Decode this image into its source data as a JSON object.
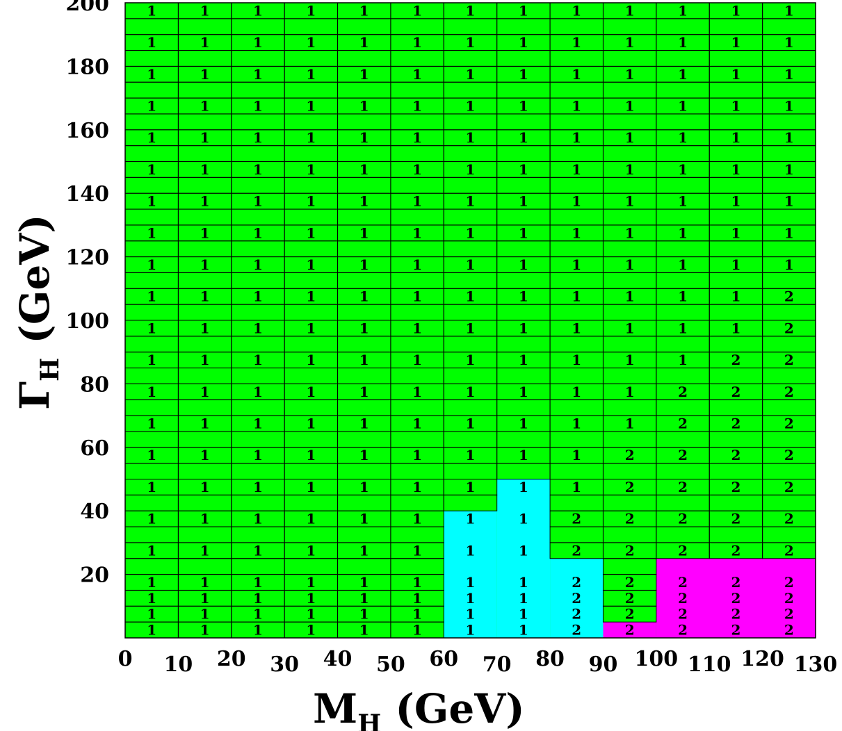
{
  "chart_data": {
    "type": "heatmap",
    "title": "",
    "xlabel": "M",
    "xlabel_sub": "H",
    "xlabel_units": " (GeV)",
    "ylabel": "Γ",
    "ylabel_sub": "H",
    "ylabel_units": " (GeV)",
    "xlim": [
      0,
      130
    ],
    "ylim": [
      0,
      200
    ],
    "x_ticks": [
      0,
      10,
      20,
      30,
      40,
      50,
      60,
      70,
      80,
      90,
      100,
      110,
      120,
      130
    ],
    "y_ticks": [
      20,
      40,
      60,
      80,
      100,
      120,
      140,
      160,
      180,
      200
    ],
    "x_bins": [
      [
        0,
        10
      ],
      [
        10,
        20
      ],
      [
        20,
        30
      ],
      [
        30,
        40
      ],
      [
        40,
        50
      ],
      [
        50,
        60
      ],
      [
        60,
        70
      ],
      [
        70,
        80
      ],
      [
        80,
        90
      ],
      [
        90,
        100
      ],
      [
        100,
        110
      ],
      [
        110,
        120
      ],
      [
        120,
        130
      ]
    ],
    "y_bins": [
      [
        0,
        5
      ],
      [
        5,
        10
      ],
      [
        10,
        15
      ],
      [
        15,
        20
      ],
      [
        20,
        25
      ],
      [
        25,
        30
      ],
      [
        30,
        35
      ],
      [
        35,
        40
      ],
      [
        40,
        45
      ],
      [
        45,
        50
      ],
      [
        50,
        55
      ],
      [
        55,
        60
      ],
      [
        60,
        65
      ],
      [
        65,
        70
      ],
      [
        70,
        75
      ],
      [
        75,
        80
      ],
      [
        80,
        85
      ],
      [
        85,
        90
      ],
      [
        90,
        95
      ],
      [
        95,
        100
      ],
      [
        100,
        105
      ],
      [
        105,
        110
      ],
      [
        110,
        115
      ],
      [
        115,
        120
      ],
      [
        120,
        125
      ],
      [
        125,
        130
      ],
      [
        130,
        135
      ],
      [
        135,
        140
      ],
      [
        140,
        145
      ],
      [
        145,
        150
      ],
      [
        150,
        155
      ],
      [
        155,
        160
      ],
      [
        160,
        165
      ],
      [
        165,
        170
      ],
      [
        170,
        175
      ],
      [
        175,
        180
      ],
      [
        180,
        185
      ],
      [
        185,
        190
      ],
      [
        190,
        195
      ],
      [
        195,
        200
      ]
    ],
    "color_legend": {
      "green": "#00ff00",
      "cyan": "#00ffff",
      "magenta": "#ff00ff"
    },
    "regions": [
      {
        "color": "cyan",
        "x": [
          60,
          70
        ],
        "y": [
          0,
          40
        ]
      },
      {
        "color": "cyan",
        "x": [
          70,
          80
        ],
        "y": [
          0,
          50
        ]
      },
      {
        "color": "cyan",
        "x": [
          80,
          90
        ],
        "y": [
          0,
          25
        ]
      },
      {
        "color": "magenta",
        "x": [
          90,
          100
        ],
        "y": [
          0,
          5
        ]
      },
      {
        "color": "magenta",
        "x": [
          100,
          130
        ],
        "y": [
          0,
          25
        ]
      }
    ],
    "labels": [
      {
        "y": 2.5,
        "values": [
          "1",
          "1",
          "1",
          "1",
          "1",
          "1",
          "1",
          "1",
          "2",
          "2",
          "2",
          "2",
          "2"
        ]
      },
      {
        "y": 7.5,
        "values": [
          "1",
          "1",
          "1",
          "1",
          "1",
          "1",
          "1",
          "1",
          "2",
          "2",
          "2",
          "2",
          "2"
        ]
      },
      {
        "y": 12.5,
        "values": [
          "1",
          "1",
          "1",
          "1",
          "1",
          "1",
          "1",
          "1",
          "2",
          "2",
          "2",
          "2",
          "2"
        ]
      },
      {
        "y": 17.5,
        "values": [
          "1",
          "1",
          "1",
          "1",
          "1",
          "1",
          "1",
          "1",
          "2",
          "2",
          "2",
          "2",
          "2"
        ]
      },
      {
        "y": 27.5,
        "values": [
          "1",
          "1",
          "1",
          "1",
          "1",
          "1",
          "1",
          "1",
          "2",
          "2",
          "2",
          "2",
          "2"
        ]
      },
      {
        "y": 37.5,
        "values": [
          "1",
          "1",
          "1",
          "1",
          "1",
          "1",
          "1",
          "1",
          "2",
          "2",
          "2",
          "2",
          "2"
        ]
      },
      {
        "y": 47.5,
        "values": [
          "1",
          "1",
          "1",
          "1",
          "1",
          "1",
          "1",
          "1",
          "1",
          "2",
          "2",
          "2",
          "2"
        ]
      },
      {
        "y": 57.5,
        "values": [
          "1",
          "1",
          "1",
          "1",
          "1",
          "1",
          "1",
          "1",
          "1",
          "2",
          "2",
          "2",
          "2"
        ]
      },
      {
        "y": 67.5,
        "values": [
          "1",
          "1",
          "1",
          "1",
          "1",
          "1",
          "1",
          "1",
          "1",
          "1",
          "2",
          "2",
          "2"
        ]
      },
      {
        "y": 77.5,
        "values": [
          "1",
          "1",
          "1",
          "1",
          "1",
          "1",
          "1",
          "1",
          "1",
          "1",
          "2",
          "2",
          "2"
        ]
      },
      {
        "y": 87.5,
        "values": [
          "1",
          "1",
          "1",
          "1",
          "1",
          "1",
          "1",
          "1",
          "1",
          "1",
          "1",
          "2",
          "2"
        ]
      },
      {
        "y": 97.5,
        "values": [
          "1",
          "1",
          "1",
          "1",
          "1",
          "1",
          "1",
          "1",
          "1",
          "1",
          "1",
          "1",
          "2"
        ]
      },
      {
        "y": 107.5,
        "values": [
          "1",
          "1",
          "1",
          "1",
          "1",
          "1",
          "1",
          "1",
          "1",
          "1",
          "1",
          "1",
          "2"
        ]
      },
      {
        "y": 117.5,
        "values": [
          "1",
          "1",
          "1",
          "1",
          "1",
          "1",
          "1",
          "1",
          "1",
          "1",
          "1",
          "1",
          "1"
        ]
      },
      {
        "y": 127.5,
        "values": [
          "1",
          "1",
          "1",
          "1",
          "1",
          "1",
          "1",
          "1",
          "1",
          "1",
          "1",
          "1",
          "1"
        ]
      },
      {
        "y": 137.5,
        "values": [
          "1",
          "1",
          "1",
          "1",
          "1",
          "1",
          "1",
          "1",
          "1",
          "1",
          "1",
          "1",
          "1"
        ]
      },
      {
        "y": 147.5,
        "values": [
          "1",
          "1",
          "1",
          "1",
          "1",
          "1",
          "1",
          "1",
          "1",
          "1",
          "1",
          "1",
          "1"
        ]
      },
      {
        "y": 157.5,
        "values": [
          "1",
          "1",
          "1",
          "1",
          "1",
          "1",
          "1",
          "1",
          "1",
          "1",
          "1",
          "1",
          "1"
        ]
      },
      {
        "y": 167.5,
        "values": [
          "1",
          "1",
          "1",
          "1",
          "1",
          "1",
          "1",
          "1",
          "1",
          "1",
          "1",
          "1",
          "1"
        ]
      },
      {
        "y": 177.5,
        "values": [
          "1",
          "1",
          "1",
          "1",
          "1",
          "1",
          "1",
          "1",
          "1",
          "1",
          "1",
          "1",
          "1"
        ]
      },
      {
        "y": 187.5,
        "values": [
          "1",
          "1",
          "1",
          "1",
          "1",
          "1",
          "1",
          "1",
          "1",
          "1",
          "1",
          "1",
          "1"
        ]
      },
      {
        "y": 197.5,
        "values": [
          "1",
          "1",
          "1",
          "1",
          "1",
          "1",
          "1",
          "1",
          "1",
          "1",
          "1",
          "1",
          "1"
        ]
      }
    ]
  }
}
